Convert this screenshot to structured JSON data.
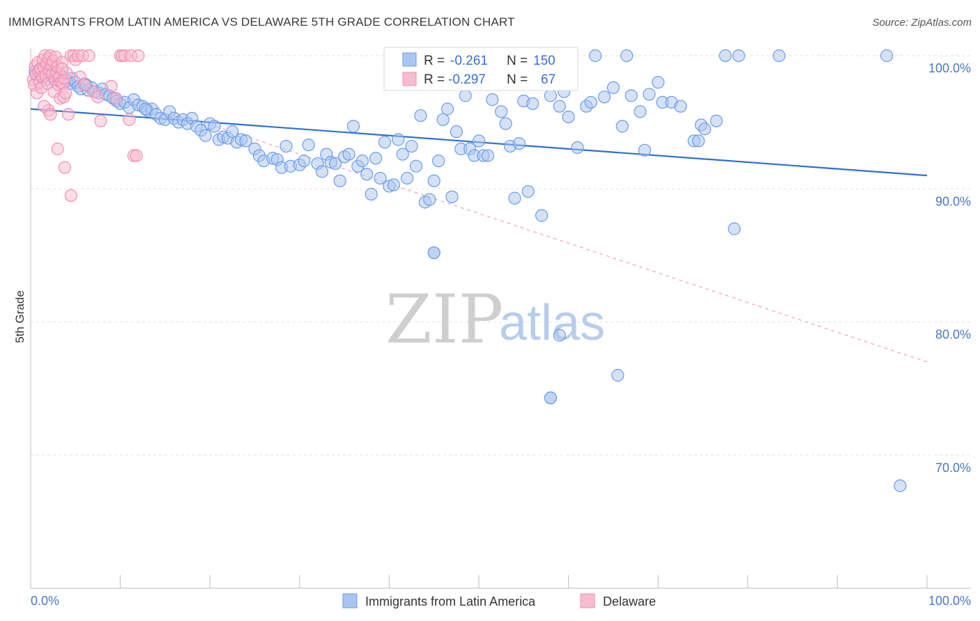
{
  "title": "IMMIGRANTS FROM LATIN AMERICA VS DELAWARE 5TH GRADE CORRELATION CHART",
  "source": "Source: ZipAtlas.com",
  "watermark": {
    "zip": "ZIP",
    "atlas": "atlas"
  },
  "chart_data": {
    "type": "scatter",
    "xlabel": "",
    "ylabel": "5th Grade",
    "xlim": [
      0,
      100
    ],
    "ylim": [
      60,
      100
    ],
    "x_tick_labels": [
      "0.0%",
      "100.0%"
    ],
    "y_ticks": [
      {
        "value": 100,
        "label": "100.0%"
      },
      {
        "value": 90,
        "label": "90.0%"
      },
      {
        "value": 80,
        "label": "80.0%"
      },
      {
        "value": 70,
        "label": "70.0%"
      }
    ],
    "grid": true,
    "legend_position": "bottom-center",
    "stats_box": [
      {
        "r_label": "R =",
        "r": "-0.261",
        "n_label": "N =",
        "n": "150"
      },
      {
        "r_label": "R =",
        "r": "-0.297",
        "n_label": "N =",
        "n": "67"
      }
    ],
    "series": [
      {
        "name": "Immigrants from Latin America",
        "color": "#6b9be6",
        "fill": "#a9c6f2",
        "trend": {
          "x": [
            0,
            100
          ],
          "y": [
            96.0,
            91.0
          ],
          "style": "solid",
          "color": "#2f6fd0"
        },
        "points": [
          [
            0.5,
            98.8
          ],
          [
            0.8,
            98.3
          ],
          [
            1.0,
            99.0
          ],
          [
            1.2,
            98.6
          ],
          [
            1.5,
            98.9
          ],
          [
            1.8,
            98.2
          ],
          [
            2.0,
            98.7
          ],
          [
            2.3,
            98.5
          ],
          [
            2.5,
            98.4
          ],
          [
            2.8,
            98.8
          ],
          [
            3.0,
            98.2
          ],
          [
            3.3,
            98.6
          ],
          [
            3.6,
            98.4
          ],
          [
            4.0,
            98.1
          ],
          [
            4.3,
            97.9
          ],
          [
            4.6,
            98.3
          ],
          [
            5.0,
            98.0
          ],
          [
            5.3,
            97.7
          ],
          [
            5.6,
            97.5
          ],
          [
            6.0,
            97.9
          ],
          [
            6.4,
            97.4
          ],
          [
            6.8,
            97.6
          ],
          [
            7.2,
            97.3
          ],
          [
            7.6,
            97.2
          ],
          [
            8.0,
            97.5
          ],
          [
            8.4,
            97.1
          ],
          [
            8.8,
            97.0
          ],
          [
            9.2,
            96.8
          ],
          [
            9.6,
            96.6
          ],
          [
            10.0,
            96.4
          ],
          [
            10.5,
            96.5
          ],
          [
            11.0,
            96.1
          ],
          [
            11.5,
            96.7
          ],
          [
            12.0,
            96.3
          ],
          [
            12.5,
            96.2
          ],
          [
            13.0,
            95.9
          ],
          [
            13.5,
            96.0
          ],
          [
            14.0,
            95.6
          ],
          [
            14.5,
            95.3
          ],
          [
            15.0,
            95.2
          ],
          [
            15.5,
            95.8
          ],
          [
            16.0,
            95.3
          ],
          [
            16.5,
            95.0
          ],
          [
            17.0,
            95.2
          ],
          [
            17.5,
            94.9
          ],
          [
            18.0,
            95.3
          ],
          [
            18.5,
            94.7
          ],
          [
            19.0,
            94.4
          ],
          [
            19.5,
            94.0
          ],
          [
            20.0,
            94.9
          ],
          [
            20.5,
            94.7
          ],
          [
            21.0,
            93.7
          ],
          [
            21.5,
            93.9
          ],
          [
            22.0,
            93.8
          ],
          [
            22.5,
            94.3
          ],
          [
            23.0,
            93.5
          ],
          [
            23.5,
            93.7
          ],
          [
            24.0,
            93.6
          ],
          [
            25.0,
            93.0
          ],
          [
            25.5,
            92.5
          ],
          [
            26.0,
            92.1
          ],
          [
            27.0,
            92.3
          ],
          [
            27.5,
            92.2
          ],
          [
            28.0,
            91.6
          ],
          [
            28.5,
            93.2
          ],
          [
            29.0,
            91.7
          ],
          [
            30.0,
            91.8
          ],
          [
            30.5,
            92.1
          ],
          [
            31.0,
            93.3
          ],
          [
            32.0,
            91.9
          ],
          [
            32.5,
            91.3
          ],
          [
            33.0,
            92.6
          ],
          [
            33.5,
            92.0
          ],
          [
            34.0,
            91.9
          ],
          [
            34.5,
            90.6
          ],
          [
            35.0,
            92.4
          ],
          [
            35.5,
            92.6
          ],
          [
            36.0,
            94.7
          ],
          [
            36.5,
            91.7
          ],
          [
            37.0,
            92.1
          ],
          [
            37.5,
            91.1
          ],
          [
            38.0,
            89.6
          ],
          [
            38.5,
            92.3
          ],
          [
            39.0,
            90.8
          ],
          [
            39.5,
            93.5
          ],
          [
            40.0,
            90.2
          ],
          [
            40.5,
            90.3
          ],
          [
            41.0,
            93.7
          ],
          [
            41.5,
            92.6
          ],
          [
            42.0,
            90.8
          ],
          [
            42.5,
            93.2
          ],
          [
            43.0,
            91.7
          ],
          [
            43.5,
            95.5
          ],
          [
            44.0,
            89.0
          ],
          [
            44.5,
            89.2
          ],
          [
            45.0,
            90.6
          ],
          [
            45.5,
            92.1
          ],
          [
            46.0,
            95.2
          ],
          [
            46.5,
            96.0
          ],
          [
            47.0,
            89.4
          ],
          [
            47.5,
            94.3
          ],
          [
            48.0,
            93.0
          ],
          [
            48.5,
            97.0
          ],
          [
            49.0,
            93.0
          ],
          [
            49.5,
            92.5
          ],
          [
            50.0,
            93.6
          ],
          [
            50.5,
            92.5
          ],
          [
            51.0,
            92.5
          ],
          [
            51.5,
            96.7
          ],
          [
            52.0,
            98.5
          ],
          [
            52.5,
            95.8
          ],
          [
            53.0,
            94.9
          ],
          [
            53.5,
            93.2
          ],
          [
            54.0,
            89.3
          ],
          [
            54.5,
            93.4
          ],
          [
            55.0,
            96.6
          ],
          [
            55.5,
            89.8
          ],
          [
            56.0,
            96.4
          ],
          [
            57.0,
            88.0
          ],
          [
            58.0,
            97.0
          ],
          [
            59.0,
            96.2
          ],
          [
            59.5,
            97.3
          ],
          [
            60.0,
            95.4
          ],
          [
            61.0,
            93.1
          ],
          [
            62.0,
            96.2
          ],
          [
            62.5,
            96.5
          ],
          [
            63.0,
            100.0
          ],
          [
            64.0,
            96.9
          ],
          [
            65.0,
            97.6
          ],
          [
            66.0,
            94.7
          ],
          [
            66.5,
            100.0
          ],
          [
            67.0,
            97.0
          ],
          [
            68.0,
            95.8
          ],
          [
            68.5,
            92.9
          ],
          [
            69.0,
            97.1
          ],
          [
            70.0,
            98.0
          ],
          [
            70.5,
            96.5
          ],
          [
            71.5,
            96.5
          ],
          [
            72.5,
            96.2
          ],
          [
            74.0,
            93.6
          ],
          [
            74.5,
            93.6
          ],
          [
            74.8,
            94.8
          ],
          [
            75.2,
            94.5
          ],
          [
            76.5,
            95.1
          ],
          [
            77.5,
            100.0
          ],
          [
            78.5,
            87.0
          ],
          [
            79.0,
            100.0
          ],
          [
            83.5,
            100.0
          ],
          [
            95.5,
            100.0
          ],
          [
            1.5,
            98.5
          ],
          [
            59.0,
            79.0
          ],
          [
            58.0,
            74.3
          ],
          [
            65.5,
            76.0
          ],
          [
            97.0,
            67.7
          ],
          [
            45.0,
            85.2
          ],
          [
            58.0,
            74.3
          ],
          [
            3.5,
            98.2
          ],
          [
            6.2,
            97.8
          ],
          [
            12.8,
            96.0
          ],
          [
            45.0,
            85.2
          ]
        ]
      },
      {
        "name": "Delaware",
        "color": "#f08fb0",
        "fill": "#f7bcd0",
        "trend": {
          "x": [
            0,
            100
          ],
          "y": [
            99.3,
            77.0
          ],
          "style": "dashed",
          "color": "#ef8eaf"
        },
        "points": [
          [
            0.3,
            98.2
          ],
          [
            0.4,
            97.8
          ],
          [
            0.5,
            99.2
          ],
          [
            0.6,
            98.6
          ],
          [
            0.7,
            97.2
          ],
          [
            0.8,
            99.5
          ],
          [
            0.9,
            98.8
          ],
          [
            1.0,
            98.0
          ],
          [
            1.1,
            99.0
          ],
          [
            1.2,
            97.6
          ],
          [
            1.3,
            98.4
          ],
          [
            1.4,
            99.7
          ],
          [
            1.5,
            99.1
          ],
          [
            1.6,
            100.0
          ],
          [
            1.7,
            98.5
          ],
          [
            1.8,
            99.4
          ],
          [
            1.9,
            97.9
          ],
          [
            2.0,
            99.8
          ],
          [
            2.1,
            98.9
          ],
          [
            2.2,
            100.0
          ],
          [
            2.3,
            99.3
          ],
          [
            2.4,
            98.6
          ],
          [
            2.5,
            99.6
          ],
          [
            2.6,
            97.3
          ],
          [
            2.7,
            98.2
          ],
          [
            2.8,
            99.9
          ],
          [
            2.9,
            98.7
          ],
          [
            3.0,
            99.2
          ],
          [
            3.1,
            97.8
          ],
          [
            3.2,
            98.4
          ],
          [
            3.3,
            96.8
          ],
          [
            3.4,
            98.0
          ],
          [
            3.5,
            99.5
          ],
          [
            3.6,
            97.9
          ],
          [
            3.7,
            96.9
          ],
          [
            3.8,
            98.3
          ],
          [
            3.9,
            97.2
          ],
          [
            4.0,
            98.7
          ],
          [
            4.2,
            95.6
          ],
          [
            4.5,
            100.0
          ],
          [
            4.8,
            100.0
          ],
          [
            5.0,
            99.7
          ],
          [
            5.3,
            100.0
          ],
          [
            5.5,
            98.4
          ],
          [
            5.8,
            100.0
          ],
          [
            6.0,
            97.8
          ],
          [
            6.5,
            100.0
          ],
          [
            7.0,
            97.3
          ],
          [
            7.5,
            96.9
          ],
          [
            7.8,
            95.1
          ],
          [
            9.0,
            97.7
          ],
          [
            9.5,
            96.8
          ],
          [
            10.0,
            100.0
          ],
          [
            10.2,
            100.0
          ],
          [
            10.5,
            100.0
          ],
          [
            11.0,
            95.2
          ],
          [
            11.2,
            100.0
          ],
          [
            11.5,
            92.5
          ],
          [
            11.8,
            92.5
          ],
          [
            12.0,
            100.0
          ],
          [
            3.0,
            93.0
          ],
          [
            3.8,
            91.6
          ],
          [
            4.5,
            89.5
          ],
          [
            2.0,
            95.9
          ],
          [
            1.5,
            96.2
          ],
          [
            2.2,
            95.6
          ],
          [
            3.5,
            99.0
          ]
        ]
      }
    ]
  }
}
